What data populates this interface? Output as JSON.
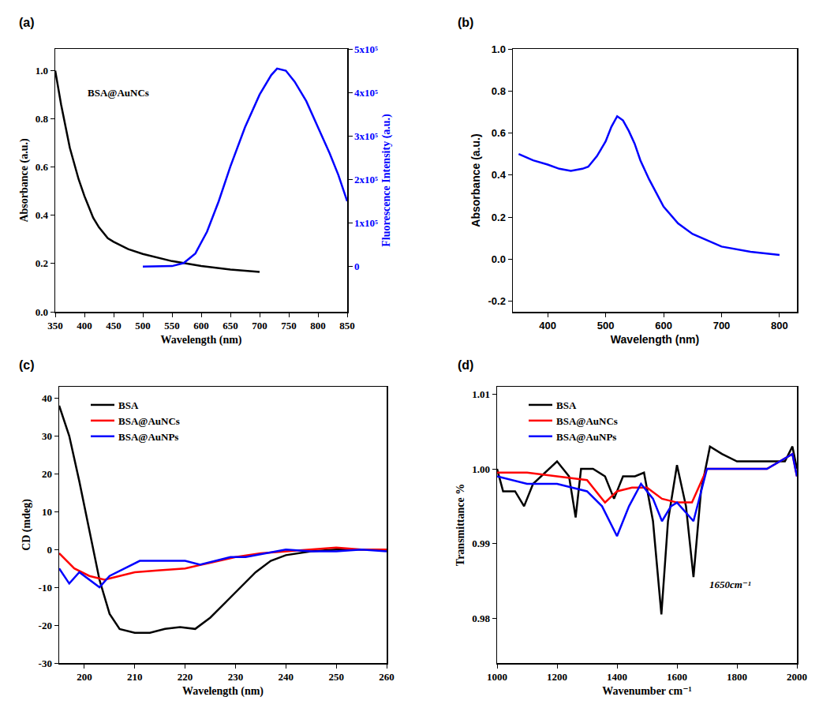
{
  "chart_data": [
    {
      "type": "line",
      "title": "(a)",
      "x_label": "Wavelength (nm)",
      "y_label": "Absorbance (a.u.)",
      "y2_label": "Fluorescence Intensity (a.u.)",
      "xlim": [
        350,
        850
      ],
      "xticks": [
        350,
        400,
        450,
        500,
        550,
        600,
        650,
        700,
        750,
        800,
        850
      ],
      "ylim": [
        0,
        1.09
      ],
      "yticks": [
        {
          "value": 0,
          "label": "0.0"
        },
        0.2,
        0.4,
        0.6,
        0.8,
        {
          "value": 1,
          "label": "1.0"
        }
      ],
      "y2lim": [
        -104000,
        500000
      ],
      "y2ticks": [
        0,
        {
          "value": 100000,
          "label": "1x10⁵"
        },
        {
          "value": 200000,
          "label": "2x10⁵"
        },
        {
          "value": 300000,
          "label": "3x10⁵"
        },
        {
          "value": 400000,
          "label": "4x10⁵"
        },
        {
          "value": 500000,
          "label": "5x10⁵"
        }
      ],
      "grid": false,
      "annotations": [
        "BSA@AuNCs"
      ],
      "series": [
        {
          "color": "#000000",
          "x": [
            350,
            360,
            375,
            390,
            400,
            415,
            425,
            440,
            450,
            475,
            500,
            550,
            600,
            650,
            700
          ],
          "values": [
            1.0,
            0.86,
            0.68,
            0.55,
            0.48,
            0.39,
            0.35,
            0.305,
            0.29,
            0.26,
            0.24,
            0.21,
            0.19,
            0.175,
            0.165
          ]
        },
        {
          "color": "#0000ff",
          "axis": "y2",
          "x": [
            500,
            525,
            550,
            570,
            590,
            610,
            630,
            650,
            675,
            700,
            720,
            730,
            745,
            760,
            780,
            800,
            820,
            835,
            850
          ],
          "values": [
            0,
            0,
            1000,
            8000,
            30000,
            80000,
            150000,
            230000,
            320000,
            395000,
            440000,
            455000,
            450000,
            425000,
            380000,
            320000,
            260000,
            210000,
            150000
          ]
        }
      ]
    },
    {
      "type": "line",
      "title": "(b)",
      "x_label": "Wavelength (nm)",
      "y_label": "Absorbance (a.u.)",
      "xlim": [
        340,
        830
      ],
      "xticks": [
        400,
        500,
        600,
        700,
        800
      ],
      "ylim": [
        -0.25,
        1.0
      ],
      "yticks": [
        -0.2,
        {
          "value": 0,
          "label": "0.0"
        },
        0.2,
        0.4,
        0.6,
        0.8,
        {
          "value": 1,
          "label": "1.0"
        }
      ],
      "grid": false,
      "series": [
        {
          "color": "#0000ff",
          "x": [
            350,
            375,
            400,
            420,
            440,
            460,
            470,
            485,
            500,
            510,
            520,
            530,
            540,
            550,
            560,
            575,
            600,
            625,
            650,
            700,
            750,
            800
          ],
          "values": [
            0.5,
            0.47,
            0.45,
            0.43,
            0.42,
            0.43,
            0.44,
            0.49,
            0.56,
            0.63,
            0.68,
            0.66,
            0.61,
            0.55,
            0.47,
            0.38,
            0.25,
            0.17,
            0.12,
            0.06,
            0.035,
            0.02
          ]
        }
      ]
    },
    {
      "type": "line",
      "title": "(c)",
      "x_label": "Wavelength (nm)",
      "y_label": "CD (mdeg)",
      "xlim": [
        195,
        260
      ],
      "xticks": [
        200,
        210,
        220,
        230,
        240,
        250,
        260
      ],
      "ylim": [
        -30,
        43
      ],
      "yticks": [
        -30,
        -20,
        -10,
        0,
        10,
        20,
        30,
        40
      ],
      "grid": false,
      "legend": "upper left",
      "series": [
        {
          "name": "BSA",
          "color": "#000000",
          "x": [
            195,
            197,
            199,
            201,
            203,
            205,
            207,
            210,
            213,
            216,
            219,
            222,
            225,
            228,
            231,
            234,
            237,
            240,
            245,
            250,
            255,
            260
          ],
          "values": [
            38,
            30,
            18,
            5,
            -8,
            -17,
            -21,
            -22,
            -22,
            -21,
            -20.5,
            -21,
            -18,
            -14,
            -10,
            -6,
            -3,
            -1.5,
            -0.5,
            0,
            0,
            0
          ]
        },
        {
          "name": "BSA@AuNCs",
          "color": "#ff0000",
          "x": [
            195,
            198,
            201,
            204,
            207,
            210,
            215,
            220,
            225,
            230,
            235,
            240,
            245,
            250,
            255,
            260
          ],
          "values": [
            -1,
            -5,
            -7,
            -8,
            -7,
            -6,
            -5.5,
            -5,
            -3.5,
            -2,
            -1,
            -0.5,
            0,
            0.5,
            0,
            0
          ]
        },
        {
          "name": "BSA@AuNPs",
          "color": "#0000ff",
          "x": [
            195,
            197,
            199,
            201,
            203,
            205,
            208,
            211,
            214,
            217,
            220,
            223,
            226,
            229,
            232,
            236,
            240,
            245,
            250,
            255,
            260
          ],
          "values": [
            -5,
            -9,
            -6,
            -8,
            -10,
            -7,
            -5,
            -3,
            -3,
            -3,
            -3,
            -4,
            -3,
            -2,
            -2,
            -1,
            0,
            -0.5,
            -0.5,
            0,
            -0.5
          ]
        }
      ]
    },
    {
      "type": "line",
      "title": "(d)",
      "x_label": "Wavenumber cm⁻¹",
      "y_label": "Transmittance %",
      "xlim": [
        1000,
        2000
      ],
      "xticks": [
        1000,
        1200,
        1400,
        1600,
        1800,
        2000
      ],
      "ylim": [
        0.974,
        1.011
      ],
      "yticks": [
        0.98,
        0.99,
        {
          "value": 1,
          "label": "1.00"
        },
        1.01
      ],
      "grid": false,
      "legend": "upper left",
      "annotations": [
        "1650cm⁻¹"
      ],
      "series": [
        {
          "name": "BSA",
          "color": "#000000",
          "x": [
            1000,
            1020,
            1060,
            1090,
            1120,
            1200,
            1240,
            1262,
            1280,
            1320,
            1360,
            1390,
            1420,
            1460,
            1490,
            1520,
            1548,
            1570,
            1600,
            1630,
            1655,
            1680,
            1710,
            1750,
            1800,
            1900,
            1960,
            1985,
            2000
          ],
          "values": [
            1.0,
            0.997,
            0.997,
            0.995,
            0.998,
            1.001,
            0.999,
            0.9935,
            1.0,
            1.0,
            0.999,
            0.996,
            0.999,
            0.999,
            0.9995,
            0.993,
            0.9805,
            0.993,
            1.0005,
            0.995,
            0.9855,
            0.997,
            1.003,
            1.002,
            1.001,
            1.001,
            1.001,
            1.003,
            1.0
          ]
        },
        {
          "name": "BSA@AuNCs",
          "color": "#ff0000",
          "x": [
            1000,
            1100,
            1200,
            1300,
            1360,
            1400,
            1450,
            1500,
            1550,
            1600,
            1650,
            1700,
            1800,
            1900,
            1985,
            2000
          ],
          "values": [
            0.9995,
            0.9995,
            0.999,
            0.9985,
            0.9955,
            0.997,
            0.9975,
            0.9975,
            0.996,
            0.9955,
            0.9955,
            1.0,
            1.0,
            1.0,
            1.002,
            0.999
          ]
        },
        {
          "name": "BSA@AuNPs",
          "color": "#0000ff",
          "x": [
            1000,
            1100,
            1200,
            1300,
            1350,
            1400,
            1440,
            1480,
            1520,
            1550,
            1580,
            1600,
            1655,
            1700,
            1800,
            1900,
            1985,
            2000
          ],
          "values": [
            0.999,
            0.998,
            0.998,
            0.997,
            0.995,
            0.991,
            0.995,
            0.998,
            0.996,
            0.993,
            0.995,
            0.9955,
            0.993,
            1.0,
            1.0,
            1.0,
            1.002,
            0.999
          ]
        }
      ]
    }
  ]
}
